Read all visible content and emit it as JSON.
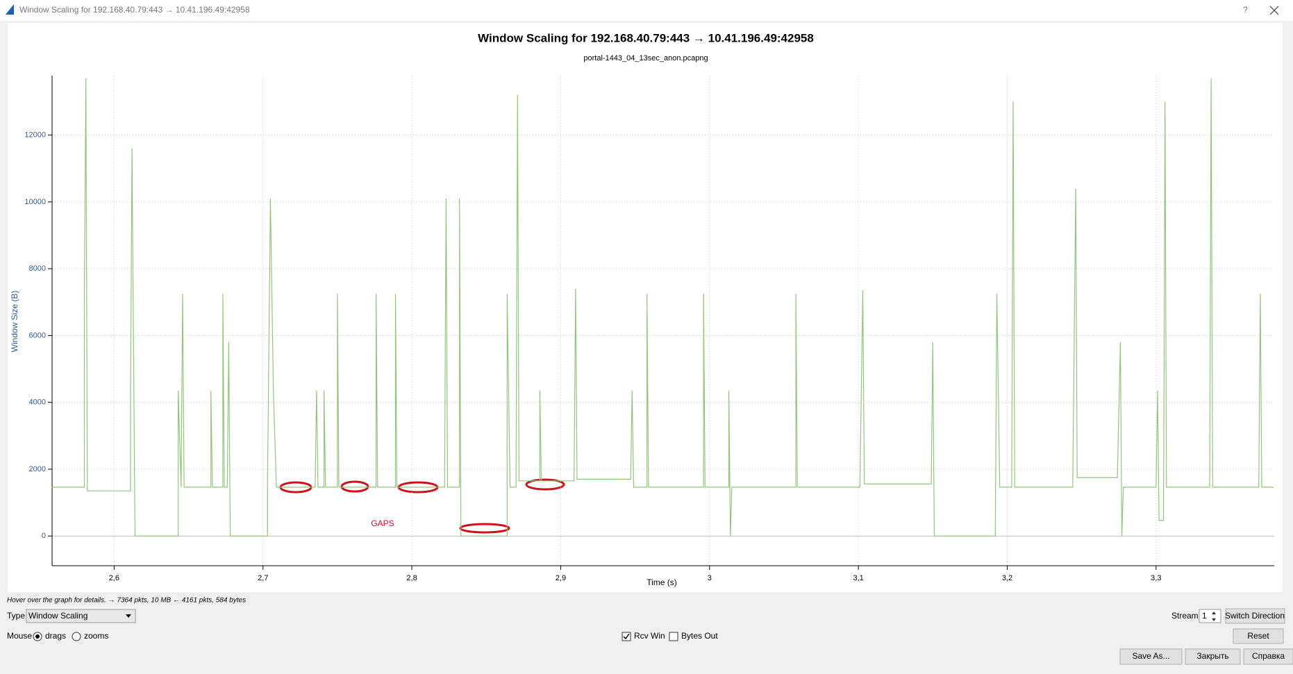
{
  "window": {
    "title": "Window Scaling for 192.168.40.79:443 → 10.41.196.49:42958",
    "help": "?"
  },
  "chart_data": {
    "type": "line",
    "title": "Window Scaling for 192.168.40.79:443 → 10.41.196.49:42958",
    "subtitle": "portal-1443_04_13sec_anon.pcapng",
    "x_label": "Time (s)",
    "y_label": "Window Size (B)",
    "annotations": [
      "GAPS"
    ],
    "xlim": [
      2.5583,
      3.3794
    ],
    "xticks": [
      {
        "value": 2.6,
        "label": "2,6"
      },
      {
        "value": 2.7,
        "label": "2,7"
      },
      {
        "value": 2.8,
        "label": "2,8"
      },
      {
        "value": 2.9,
        "label": "2,9"
      },
      3,
      {
        "value": 3.1,
        "label": "3,1"
      },
      {
        "value": 3.2,
        "label": "3,2"
      },
      {
        "value": 3.3,
        "label": "3,3"
      }
    ],
    "ylim": [
      -889,
      13778
    ],
    "yticks": [
      0,
      2000,
      4000,
      6000,
      8000,
      10000,
      12000
    ],
    "grid": true,
    "x": [
      2.558,
      2.58,
      2.58,
      2.581,
      2.582,
      2.611,
      2.611,
      2.612,
      2.614,
      2.643,
      2.643,
      2.645,
      2.646,
      2.647,
      2.665,
      2.665,
      2.666,
      2.673,
      2.673,
      2.674,
      2.676,
      2.677,
      2.678,
      2.703,
      2.703,
      2.705,
      2.707,
      2.709,
      2.735,
      2.736,
      2.737,
      2.741,
      2.741,
      2.742,
      2.75,
      2.75,
      2.751,
      2.776,
      2.776,
      2.777,
      2.789,
      2.789,
      2.79,
      2.822,
      2.823,
      2.824,
      2.832,
      2.832,
      2.833,
      2.864,
      2.864,
      2.866,
      2.87,
      2.871,
      2.872,
      2.886,
      2.886,
      2.887,
      2.909,
      2.91,
      2.911,
      2.947,
      2.948,
      2.949,
      2.958,
      2.958,
      2.959,
      2.996,
      2.996,
      2.997,
      3.013,
      3.013,
      3.014,
      3.015,
      3.058,
      3.058,
      3.059,
      3.101,
      3.103,
      3.104,
      3.149,
      3.15,
      3.151,
      3.192,
      3.193,
      3.195,
      3.203,
      3.204,
      3.205,
      3.244,
      3.246,
      3.247,
      3.274,
      3.276,
      3.277,
      3.278,
      3.3,
      3.301,
      3.302,
      3.305,
      3.306,
      3.307,
      3.336,
      3.337,
      3.338,
      3.369,
      3.37,
      3.371,
      3.379
    ],
    "series": [
      {
        "name": "Rcv Win",
        "color": "#93c47d",
        "values": [
          1460,
          1460,
          7250,
          13700,
          1350,
          1350,
          4350,
          11600,
          0,
          0,
          4350,
          1460,
          7250,
          1460,
          1460,
          4350,
          1460,
          1460,
          7250,
          1460,
          1460,
          5800,
          0,
          0,
          1460,
          10100,
          4350,
          1460,
          1460,
          4350,
          1460,
          1460,
          4350,
          1460,
          1460,
          7250,
          1460,
          1460,
          7250,
          1460,
          1460,
          7250,
          1460,
          1460,
          10100,
          1460,
          1460,
          10100,
          0,
          0,
          7250,
          1460,
          1460,
          13200,
          1650,
          1650,
          4350,
          1650,
          1650,
          7400,
          1700,
          1700,
          4350,
          1460,
          1460,
          7250,
          1460,
          1460,
          7250,
          1460,
          1460,
          4350,
          0,
          1460,
          1460,
          7250,
          1460,
          1460,
          7350,
          1560,
          1560,
          5800,
          0,
          0,
          7250,
          1460,
          1460,
          13000,
          1460,
          1460,
          10400,
          1750,
          1750,
          5800,
          0,
          1460,
          1460,
          4350,
          470,
          470,
          13000,
          1460,
          1460,
          13700,
          1460,
          1460,
          7250,
          1460,
          1460
        ]
      }
    ]
  },
  "controls": {
    "hint": "Hover over the graph for details. → 7364 pkts, 10 MB ← 4161 pkts, 584 bytes",
    "type_label": "Type",
    "type_value": "Window Scaling",
    "stream_label": "Stream",
    "stream_value": "1",
    "switch": "Switch Direction",
    "mouse_label": "Mouse",
    "drags": "drags",
    "zooms": "zooms",
    "bytes_out": "Bytes Out",
    "reset": "Reset",
    "buttons": [
      "Save As...",
      "Закрыть",
      "Справка"
    ]
  }
}
